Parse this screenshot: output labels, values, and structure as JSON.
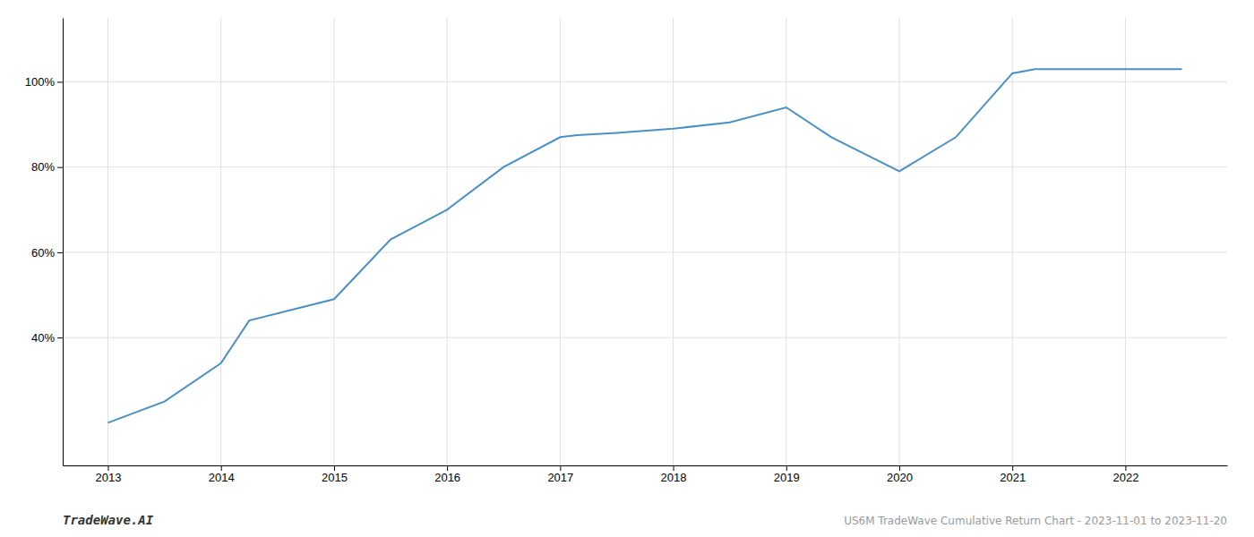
{
  "chart_data": {
    "type": "line",
    "x": [
      2013,
      2013.5,
      2014,
      2014.25,
      2015,
      2015.5,
      2016,
      2016.5,
      2017,
      2017.15,
      2017.5,
      2018,
      2018.5,
      2019,
      2019.4,
      2020,
      2020.5,
      2021,
      2021.2,
      2022,
      2022.5
    ],
    "values": [
      20,
      25,
      34,
      44,
      49,
      63,
      70,
      80,
      87,
      87.5,
      88,
      89,
      90.5,
      94,
      87,
      79,
      87,
      102,
      103,
      103,
      103
    ],
    "color": "#4a90c4",
    "xlim": [
      2012.6,
      2022.9
    ],
    "xticks": [
      2013,
      2014,
      2015,
      2016,
      2017,
      2018,
      2019,
      2020,
      2021,
      2022
    ],
    "ylim": [
      10,
      115
    ],
    "yticks": [
      {
        "value": 40,
        "label": "40%"
      },
      {
        "value": 60,
        "label": "60%"
      },
      {
        "value": 80,
        "label": "80%"
      },
      {
        "value": 100,
        "label": "100%"
      }
    ],
    "grid": true,
    "annotations": [
      "TradeWave.AI",
      "US6M TradeWave Cumulative Return Chart - 2023-11-01 to 2023-11-20"
    ]
  }
}
